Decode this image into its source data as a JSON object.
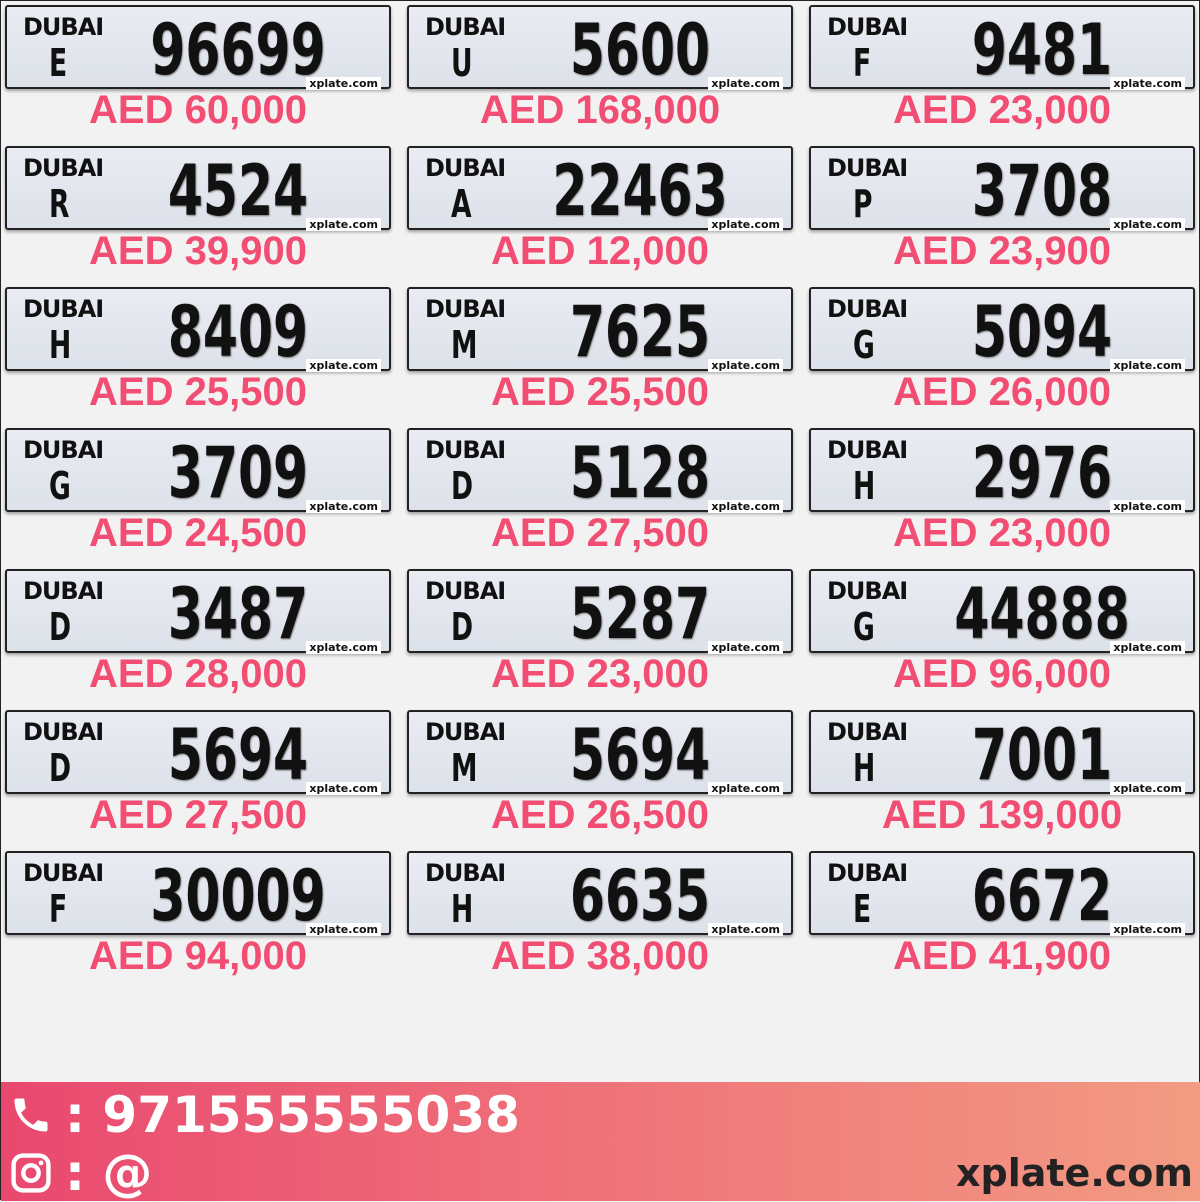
{
  "plate_label": "DUBAI",
  "plate_watermark": "xplate.com",
  "plates": [
    {
      "code": "E",
      "number": "96699",
      "price": "AED 60,000"
    },
    {
      "code": "U",
      "number": "5600",
      "price": "AED 168,000"
    },
    {
      "code": "F",
      "number": "9481",
      "price": "AED 23,000"
    },
    {
      "code": "R",
      "number": "4524",
      "price": "AED 39,900"
    },
    {
      "code": "A",
      "number": "22463",
      "price": "AED 12,000"
    },
    {
      "code": "P",
      "number": "3708",
      "price": "AED 23,900"
    },
    {
      "code": "H",
      "number": "8409",
      "price": "AED 25,500"
    },
    {
      "code": "M",
      "number": "7625",
      "price": "AED 25,500"
    },
    {
      "code": "G",
      "number": "5094",
      "price": "AED 26,000"
    },
    {
      "code": "G",
      "number": "3709",
      "price": "AED 24,500"
    },
    {
      "code": "D",
      "number": "5128",
      "price": "AED 27,500"
    },
    {
      "code": "H",
      "number": "2976",
      "price": "AED 23,000"
    },
    {
      "code": "D",
      "number": "3487",
      "price": "AED 28,000"
    },
    {
      "code": "D",
      "number": "5287",
      "price": "AED 23,000"
    },
    {
      "code": "G",
      "number": "44888",
      "price": "AED 96,000"
    },
    {
      "code": "D",
      "number": "5694",
      "price": "AED 27,500"
    },
    {
      "code": "M",
      "number": "5694",
      "price": "AED 26,500"
    },
    {
      "code": "H",
      "number": "7001",
      "price": "AED 139,000"
    },
    {
      "code": "F",
      "number": "30009",
      "price": "AED 94,000"
    },
    {
      "code": "H",
      "number": "6635",
      "price": "AED 38,000"
    },
    {
      "code": "E",
      "number": "6672",
      "price": "AED 41,900"
    }
  ],
  "footer": {
    "phone": ": 971555555038",
    "instagram": ": @",
    "site": "xplate.com",
    "phone_icon": "phone-icon",
    "instagram_icon": "instagram-icon"
  },
  "colors": {
    "price": "#f24d72",
    "footer_start": "#e9486f",
    "footer_end": "#f29b82"
  }
}
